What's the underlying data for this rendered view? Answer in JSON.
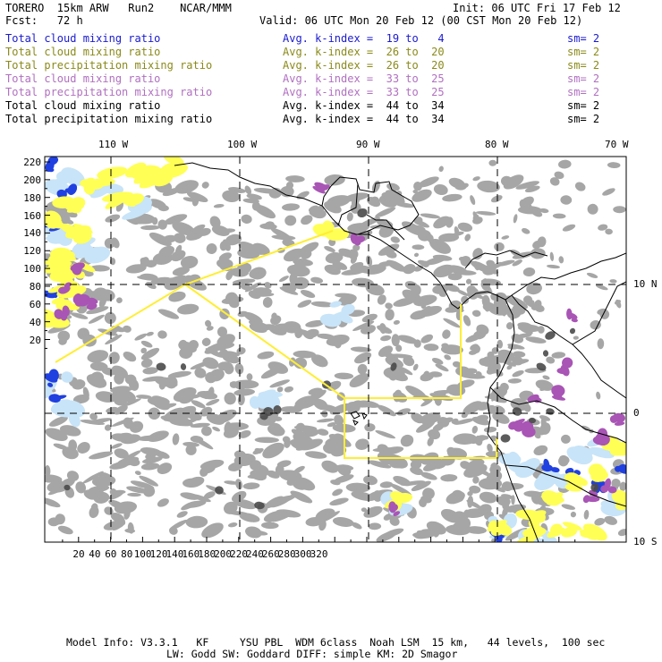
{
  "header": {
    "model": "TORERO  15km ARW   Run2    NCAR/MMM",
    "init": "Init: 06 UTC Fri 17 Feb 12",
    "fcst": "Fcst:   72 h",
    "valid": "Valid: 06 UTC Mon 20 Feb 12 (00 CST Mon 20 Feb 12)"
  },
  "fields": [
    {
      "name": "Total cloud mixing ratio",
      "kindex": "Avg. k-index =  19 to   4",
      "sm": "sm= 2",
      "color": "#1a1ad0"
    },
    {
      "name": "Total cloud mixing ratio",
      "kindex": "Avg. k-index =  26 to  20",
      "sm": "sm= 2",
      "color": "#8a8a1a"
    },
    {
      "name": "Total precipitation mixing ratio",
      "kindex": "Avg. k-index =  26 to  20",
      "sm": "sm= 2",
      "color": "#8a8a1a"
    },
    {
      "name": "Total cloud mixing ratio",
      "kindex": "Avg. k-index =  33 to  25",
      "sm": "sm= 2",
      "color": "#b070c0"
    },
    {
      "name": "Total precipitation mixing ratio",
      "kindex": "Avg. k-index =  33 to  25",
      "sm": "sm= 2",
      "color": "#b070c0"
    },
    {
      "name": "Total cloud mixing ratio",
      "kindex": "Avg. k-index =  44 to  34",
      "sm": "sm= 2",
      "color": "#000000"
    },
    {
      "name": "Total precipitation mixing ratio",
      "kindex": "Avg. k-index =  44 to  34",
      "sm": "sm= 2",
      "color": "#000000"
    }
  ],
  "map": {
    "lon_labels": [
      "110 W",
      "100 W",
      "90 W",
      "80 W",
      "70 W"
    ],
    "lat_labels": [
      "10 N",
      "0",
      "10 S"
    ],
    "x_ticks": [
      "20",
      "40",
      "60",
      "80",
      "100",
      "120",
      "140",
      "160",
      "180",
      "200",
      "220",
      "240",
      "260",
      "280",
      "300",
      "320"
    ],
    "y_ticks": [
      "220",
      "200",
      "180",
      "160",
      "140",
      "120",
      "100",
      "80",
      "60",
      "40",
      "20"
    ],
    "colors": {
      "cloud_gray": "#a6a6a6",
      "dark_gray": "#4a4a4a",
      "yellow": "#ffff55",
      "blue": "#2040e0",
      "light_blue": "#c8e4f8",
      "purple": "#a855b5",
      "box_line": "#ffee33"
    }
  },
  "footer": {
    "line1": "Model Info: V3.3.1   KF     YSU PBL  WDM 6class  Noah LSM  15 km,   44 levels,  100 sec",
    "line2": "LW: Godd SW: Goddard DIFF: simple KM: 2D Smagor"
  }
}
